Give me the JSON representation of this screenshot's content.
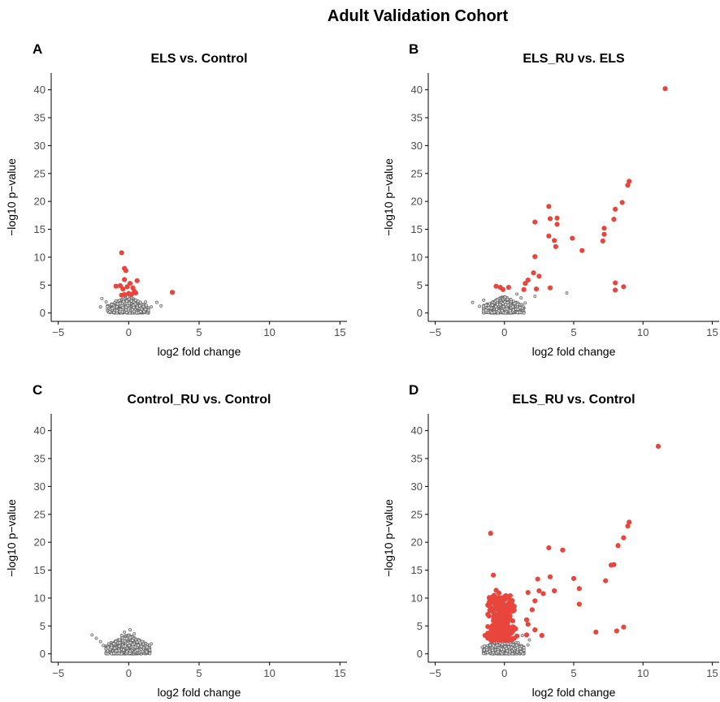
{
  "figure": {
    "title": "Adult Validation Cohort"
  },
  "colors": {
    "significant": "#E8453C",
    "nonsignificant": "#666666",
    "axis": "#000000"
  },
  "chart_data": [
    {
      "panel": "A",
      "type": "scatter",
      "title": "ELS vs. Control",
      "xlabel": "log2 fold change",
      "ylabel": "−log10 p−value",
      "xlim": [
        -5.5,
        15.5
      ],
      "ylim": [
        -1.5,
        43
      ],
      "xticks": [
        "−5",
        "0",
        "5",
        "10",
        "15"
      ],
      "xtick_values": [
        -5,
        0,
        5,
        10,
        15
      ],
      "yticks": [
        "0",
        "5",
        "10",
        "15",
        "20",
        "25",
        "30",
        "35",
        "40"
      ],
      "ytick_values": [
        0,
        5,
        10,
        15,
        20,
        25,
        30,
        35,
        40
      ],
      "series": [
        {
          "role": "nonsignificant",
          "values": [
            [
              -1.9,
              2.6
            ],
            [
              -1.6,
              2.0
            ],
            [
              -1.2,
              1.5
            ],
            [
              -0.9,
              2.2
            ],
            [
              0.8,
              1.3
            ],
            [
              1.2,
              2.0
            ],
            [
              1.6,
              1.1
            ],
            [
              2.0,
              1.9
            ],
            [
              2.3,
              1.3
            ],
            [
              -2.0,
              1.1
            ]
          ],
          "cloud": {
            "x_range": [
              -1.5,
              1.4
            ],
            "y_range": [
              0,
              3.0
            ],
            "count": 600
          }
        },
        {
          "role": "significant",
          "values": [
            [
              -0.5,
              10.8
            ],
            [
              -0.3,
              8.0
            ],
            [
              -0.2,
              7.6
            ],
            [
              -0.3,
              6.0
            ],
            [
              0.1,
              5.3
            ],
            [
              0.6,
              5.8
            ],
            [
              -0.9,
              4.8
            ],
            [
              -0.6,
              4.9
            ],
            [
              -0.4,
              4.3
            ],
            [
              -0.1,
              4.7
            ],
            [
              0.3,
              4.5
            ],
            [
              0.4,
              3.9
            ],
            [
              0.0,
              3.5
            ],
            [
              -0.3,
              3.3
            ],
            [
              0.2,
              3.3
            ],
            [
              0.5,
              3.6
            ],
            [
              -0.5,
              3.2
            ],
            [
              3.1,
              3.7
            ]
          ]
        }
      ]
    },
    {
      "panel": "B",
      "type": "scatter",
      "title": "ELS_RU vs. ELS",
      "xlabel": "log2 fold change",
      "ylabel": "−log10 p−value",
      "xlim": [
        -5.5,
        15.5
      ],
      "ylim": [
        -1.5,
        43
      ],
      "xticks": [
        "−5",
        "0",
        "5",
        "10",
        "15"
      ],
      "xtick_values": [
        -5,
        0,
        5,
        10,
        15
      ],
      "yticks": [
        "0",
        "5",
        "10",
        "15",
        "20",
        "25",
        "30",
        "35",
        "40"
      ],
      "ytick_values": [
        0,
        5,
        10,
        15,
        20,
        25,
        30,
        35,
        40
      ],
      "series": [
        {
          "role": "nonsignificant",
          "values": [
            [
              -2.3,
              1.9
            ],
            [
              -1.8,
              1.2
            ],
            [
              1.2,
              2.7
            ],
            [
              1.5,
              1.8
            ],
            [
              2.2,
              3.0
            ],
            [
              4.5,
              3.6
            ],
            [
              -1.5,
              2.3
            ],
            [
              0.9,
              3.4
            ]
          ],
          "cloud": {
            "x_range": [
              -1.5,
              1.4
            ],
            "y_range": [
              0,
              3.0
            ],
            "count": 600
          }
        },
        {
          "role": "significant",
          "values": [
            [
              11.6,
              40.2
            ],
            [
              9.0,
              23.6
            ],
            [
              8.9,
              22.9
            ],
            [
              8.5,
              19.8
            ],
            [
              8.0,
              18.6
            ],
            [
              7.9,
              16.8
            ],
            [
              7.2,
              15.2
            ],
            [
              7.2,
              14.1
            ],
            [
              7.1,
              12.9
            ],
            [
              8.0,
              5.4
            ],
            [
              8.6,
              4.7
            ],
            [
              8.0,
              4.1
            ],
            [
              3.2,
              19.1
            ],
            [
              3.3,
              16.9
            ],
            [
              3.8,
              17.0
            ],
            [
              3.8,
              15.9
            ],
            [
              2.2,
              16.3
            ],
            [
              3.2,
              13.8
            ],
            [
              3.6,
              13.0
            ],
            [
              3.7,
              11.9
            ],
            [
              4.9,
              13.4
            ],
            [
              5.6,
              11.2
            ],
            [
              2.2,
              10.1
            ],
            [
              1.7,
              5.9
            ],
            [
              1.5,
              5.3
            ],
            [
              2.1,
              7.2
            ],
            [
              2.5,
              6.6
            ],
            [
              2.3,
              4.3
            ],
            [
              1.4,
              4.2
            ],
            [
              3.3,
              4.5
            ],
            [
              -0.6,
              4.8
            ],
            [
              -0.3,
              4.6
            ],
            [
              0.3,
              4.6
            ],
            [
              -0.1,
              4.2
            ]
          ]
        }
      ]
    },
    {
      "panel": "C",
      "type": "scatter",
      "title": "Control_RU vs. Control",
      "xlabel": "log2 fold change",
      "ylabel": "−log10 p−value",
      "xlim": [
        -5.5,
        15.5
      ],
      "ylim": [
        -1.5,
        43
      ],
      "xticks": [
        "−5",
        "0",
        "5",
        "10",
        "15"
      ],
      "xtick_values": [
        -5,
        0,
        5,
        10,
        15
      ],
      "yticks": [
        "0",
        "5",
        "10",
        "15",
        "20",
        "25",
        "30",
        "35",
        "40"
      ],
      "ytick_values": [
        0,
        5,
        10,
        15,
        20,
        25,
        30,
        35,
        40
      ],
      "series": [
        {
          "role": "nonsignificant",
          "values": [
            [
              -2.6,
              3.4
            ],
            [
              -2.3,
              2.8
            ],
            [
              -2.0,
              2.2
            ],
            [
              -1.8,
              1.5
            ],
            [
              1.3,
              1.2
            ],
            [
              1.6,
              1.8
            ],
            [
              0.1,
              4.3
            ],
            [
              -0.3,
              3.9
            ],
            [
              0.4,
              3.6
            ],
            [
              -0.5,
              3.3
            ]
          ],
          "cloud": {
            "x_range": [
              -1.6,
              1.5
            ],
            "y_range": [
              0,
              3.5
            ],
            "count": 650
          }
        },
        {
          "role": "significant",
          "values": []
        }
      ]
    },
    {
      "panel": "D",
      "type": "scatter",
      "title": "ELS_RU vs. Control",
      "xlabel": "log2 fold change",
      "ylabel": "−log10 p−value",
      "xlim": [
        -5.5,
        15.5
      ],
      "ylim": [
        -1.5,
        43
      ],
      "xticks": [
        "−5",
        "0",
        "5",
        "10",
        "15"
      ],
      "xtick_values": [
        -5,
        0,
        5,
        10,
        15
      ],
      "yticks": [
        "0",
        "5",
        "10",
        "15",
        "20",
        "25",
        "30",
        "35",
        "40"
      ],
      "ytick_values": [
        0,
        5,
        10,
        15,
        20,
        25,
        30,
        35,
        40
      ],
      "series": [
        {
          "role": "nonsignificant",
          "values": [
            [
              -1.6,
              1.2
            ],
            [
              1.0,
              2.0
            ],
            [
              1.4,
              1.1
            ],
            [
              1.7,
              1.6
            ],
            [
              1.3,
              3.3
            ],
            [
              1.8,
              2.5
            ]
          ],
          "cloud": {
            "x_range": [
              -1.5,
              1.4
            ],
            "y_range": [
              0,
              3.0
            ],
            "count": 600
          }
        },
        {
          "role": "significant",
          "values": [
            [
              11.1,
              37.2
            ],
            [
              9.0,
              23.6
            ],
            [
              8.9,
              22.9
            ],
            [
              8.6,
              20.8
            ],
            [
              8.2,
              19.4
            ],
            [
              7.9,
              16.0
            ],
            [
              7.7,
              15.9
            ],
            [
              7.3,
              13.1
            ],
            [
              5.0,
              13.5
            ],
            [
              5.4,
              11.7
            ],
            [
              5.4,
              8.9
            ],
            [
              6.6,
              3.9
            ],
            [
              8.1,
              4.1
            ],
            [
              8.6,
              4.8
            ],
            [
              3.2,
              19.0
            ],
            [
              4.2,
              18.6
            ],
            [
              3.3,
              13.8
            ],
            [
              2.4,
              13.4
            ],
            [
              3.6,
              11.3
            ],
            [
              1.7,
              11.0
            ],
            [
              2.5,
              11.3
            ],
            [
              2.8,
              10.8
            ],
            [
              2.2,
              9.5
            ],
            [
              2.0,
              7.9
            ],
            [
              1.6,
              6.1
            ],
            [
              1.7,
              5.3
            ],
            [
              2.2,
              4.3
            ],
            [
              2.7,
              3.3
            ],
            [
              1.6,
              3.4
            ],
            [
              -1.0,
              21.6
            ],
            [
              -0.8,
              14.1
            ],
            [
              -0.6,
              11.4
            ],
            [
              -0.4,
              10.9
            ],
            [
              -0.5,
              8.2
            ],
            [
              -0.2,
              7.1
            ],
            [
              0.3,
              7.6
            ],
            [
              0.6,
              5.9
            ],
            [
              -1.4,
              3.3
            ],
            [
              0.8,
              4.5
            ],
            [
              0.9,
              3.2
            ]
          ],
          "cloud": {
            "x_range": [
              -1.2,
              0.7
            ],
            "y_range": [
              2.5,
              10.5
            ],
            "count": 320
          }
        }
      ]
    }
  ]
}
